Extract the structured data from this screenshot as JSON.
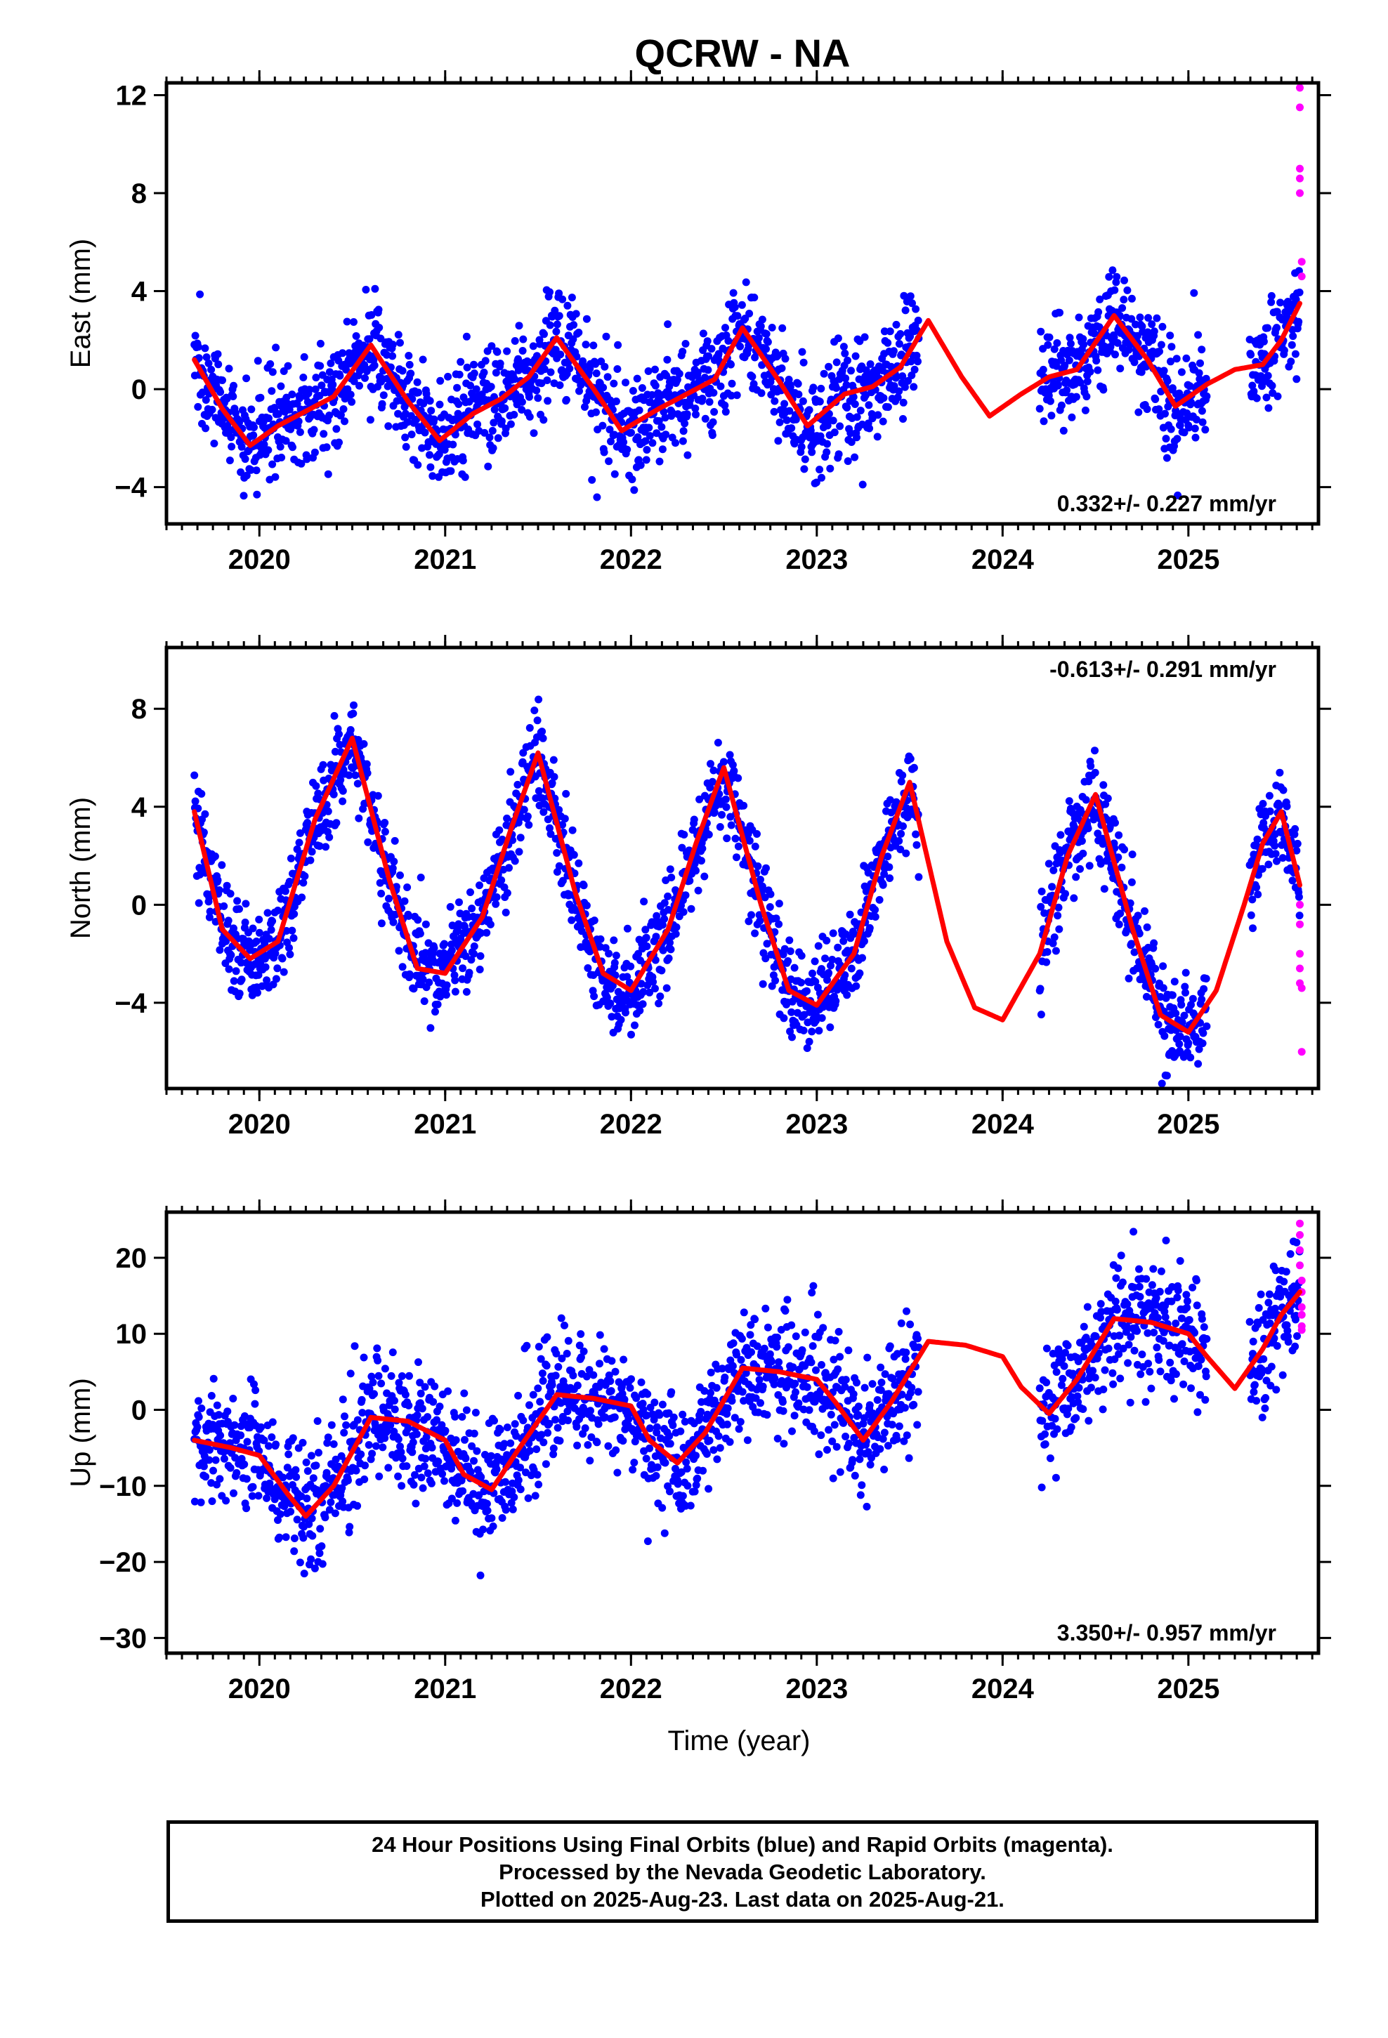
{
  "title": "QCRW - NA",
  "colors": {
    "final_orbits": "#0000ff",
    "rapid_orbits": "#ff00ff",
    "model": "#ff0000"
  },
  "footer": {
    "line1": "24 Hour Positions Using Final Orbits (blue) and Rapid Orbits (magenta).",
    "line2": "Processed by the Nevada Geodetic Laboratory.",
    "line3": "Plotted on 2025-Aug-23. Last data on 2025-Aug-21."
  },
  "chart_data": [
    {
      "type": "scatter",
      "ylabel": "East (mm)",
      "rate_label": "0.332+/- 0.227 mm/yr",
      "rate_position": "bottom-right",
      "xlim": [
        2019.5,
        2025.7
      ],
      "ylim": [
        -5.5,
        12.5
      ],
      "x_ticks": [
        2020,
        2021,
        2022,
        2023,
        2024,
        2025
      ],
      "y_ticks": [
        -4,
        0,
        4,
        8,
        12
      ],
      "rate_mm_per_yr": 0.332,
      "annual_amplitude_mm": 1.8,
      "annual_peak_fraction": 0.62,
      "semiannual_amplitude_mm": 0.3,
      "semiannual_peak_fraction": 0.1,
      "scatter_sd_mm": 1.1,
      "model_line": [
        [
          2019.65,
          1.2
        ],
        [
          2019.8,
          -0.8
        ],
        [
          2019.95,
          -2.3
        ],
        [
          2020.1,
          -1.5
        ],
        [
          2020.25,
          -0.9
        ],
        [
          2020.4,
          -0.3
        ],
        [
          2020.6,
          1.8
        ],
        [
          2020.8,
          -0.5
        ],
        [
          2020.97,
          -2.1
        ],
        [
          2021.15,
          -1.0
        ],
        [
          2021.3,
          -0.4
        ],
        [
          2021.45,
          0.5
        ],
        [
          2021.6,
          2.1
        ],
        [
          2021.8,
          0.0
        ],
        [
          2021.95,
          -1.7
        ],
        [
          2022.15,
          -0.8
        ],
        [
          2022.3,
          -0.2
        ],
        [
          2022.45,
          0.4
        ],
        [
          2022.6,
          2.5
        ],
        [
          2022.8,
          0.3
        ],
        [
          2022.95,
          -1.5
        ],
        [
          2023.15,
          -0.2
        ],
        [
          2023.3,
          0.1
        ],
        [
          2023.45,
          0.9
        ],
        [
          2023.6,
          2.8
        ],
        [
          2023.78,
          0.5
        ],
        [
          2023.93,
          -1.1
        ],
        [
          2024.1,
          -0.2
        ],
        [
          2024.25,
          0.5
        ],
        [
          2024.4,
          0.8
        ],
        [
          2024.6,
          3.0
        ],
        [
          2024.78,
          1.2
        ],
        [
          2024.93,
          -0.7
        ],
        [
          2025.1,
          0.2
        ],
        [
          2025.25,
          0.8
        ],
        [
          2025.4,
          1.0
        ],
        [
          2025.5,
          2.0
        ],
        [
          2025.6,
          3.5
        ]
      ],
      "final_segments": [
        [
          2019.65,
          2023.55
        ],
        [
          2024.2,
          2025.1
        ],
        [
          2025.33,
          2025.6
        ]
      ],
      "rapid_points": [
        [
          2025.6,
          12.3
        ],
        [
          2025.6,
          11.5
        ],
        [
          2025.6,
          9.0
        ],
        [
          2025.6,
          8.6
        ],
        [
          2025.6,
          8.0
        ],
        [
          2025.61,
          5.2
        ],
        [
          2025.61,
          4.6
        ]
      ]
    },
    {
      "type": "scatter",
      "ylabel": "North (mm)",
      "rate_label": "-0.613+/- 0.291 mm/yr",
      "rate_position": "top-right",
      "xlim": [
        2019.5,
        2025.7
      ],
      "ylim": [
        -7.5,
        10.5
      ],
      "x_ticks": [
        2020,
        2021,
        2022,
        2023,
        2024,
        2025
      ],
      "y_ticks": [
        -4,
        0,
        4,
        8
      ],
      "rate_mm_per_yr": -0.613,
      "annual_amplitude_mm": 4.8,
      "annual_peak_fraction": 0.5,
      "semiannual_amplitude_mm": 0.3,
      "semiannual_peak_fraction": 0.0,
      "scatter_sd_mm": 1.0,
      "model_line": [
        [
          2019.65,
          3.8
        ],
        [
          2019.8,
          -1.0
        ],
        [
          2019.95,
          -2.2
        ],
        [
          2020.1,
          -1.5
        ],
        [
          2020.3,
          3.5
        ],
        [
          2020.5,
          6.8
        ],
        [
          2020.7,
          1.0
        ],
        [
          2020.85,
          -2.6
        ],
        [
          2021.0,
          -2.8
        ],
        [
          2021.2,
          -0.5
        ],
        [
          2021.35,
          3.0
        ],
        [
          2021.5,
          6.2
        ],
        [
          2021.7,
          0.5
        ],
        [
          2021.85,
          -2.8
        ],
        [
          2022.0,
          -3.5
        ],
        [
          2022.2,
          -1.0
        ],
        [
          2022.35,
          2.5
        ],
        [
          2022.5,
          5.6
        ],
        [
          2022.7,
          0.0
        ],
        [
          2022.85,
          -3.5
        ],
        [
          2023.0,
          -4.1
        ],
        [
          2023.2,
          -2.0
        ],
        [
          2023.35,
          2.0
        ],
        [
          2023.5,
          5.0
        ],
        [
          2023.7,
          -1.5
        ],
        [
          2023.85,
          -4.2
        ],
        [
          2024.0,
          -4.7
        ],
        [
          2024.2,
          -2.0
        ],
        [
          2024.35,
          2.0
        ],
        [
          2024.5,
          4.5
        ],
        [
          2024.7,
          -1.0
        ],
        [
          2024.85,
          -4.5
        ],
        [
          2025.0,
          -5.2
        ],
        [
          2025.15,
          -3.5
        ],
        [
          2025.3,
          0.0
        ],
        [
          2025.4,
          2.5
        ],
        [
          2025.5,
          3.8
        ],
        [
          2025.6,
          0.8
        ]
      ],
      "final_segments": [
        [
          2019.65,
          2023.55
        ],
        [
          2024.2,
          2025.1
        ],
        [
          2025.33,
          2025.6
        ]
      ],
      "rapid_points": [
        [
          2025.6,
          0.0
        ],
        [
          2025.6,
          -0.8
        ],
        [
          2025.6,
          -2.0
        ],
        [
          2025.6,
          -2.6
        ],
        [
          2025.6,
          -3.2
        ],
        [
          2025.61,
          -3.4
        ],
        [
          2025.61,
          -6.0
        ]
      ]
    },
    {
      "type": "scatter",
      "ylabel": "Up (mm)",
      "xlabel": "Time (year)",
      "rate_label": "3.350+/- 0.957 mm/yr",
      "rate_position": "bottom-right",
      "xlim": [
        2019.5,
        2025.7
      ],
      "ylim": [
        -32,
        26
      ],
      "x_ticks": [
        2020,
        2021,
        2022,
        2023,
        2024,
        2025
      ],
      "y_ticks": [
        -30,
        -20,
        -10,
        0,
        10,
        20
      ],
      "rate_mm_per_yr": 3.35,
      "annual_amplitude_mm": 4.5,
      "annual_peak_fraction": 0.75,
      "semiannual_amplitude_mm": 1.0,
      "semiannual_peak_fraction": 0.2,
      "scatter_sd_mm": 4.0,
      "model_line": [
        [
          2019.65,
          -4.0
        ],
        [
          2019.85,
          -5.0
        ],
        [
          2020.0,
          -6.0
        ],
        [
          2020.15,
          -11.0
        ],
        [
          2020.25,
          -14.0
        ],
        [
          2020.4,
          -10.0
        ],
        [
          2020.6,
          -1.0
        ],
        [
          2020.8,
          -1.5
        ],
        [
          2021.0,
          -4.0
        ],
        [
          2021.1,
          -8.5
        ],
        [
          2021.25,
          -10.5
        ],
        [
          2021.4,
          -5.0
        ],
        [
          2021.6,
          2.0
        ],
        [
          2021.8,
          1.5
        ],
        [
          2022.0,
          0.5
        ],
        [
          2022.1,
          -4.0
        ],
        [
          2022.25,
          -7.0
        ],
        [
          2022.4,
          -3.0
        ],
        [
          2022.6,
          5.5
        ],
        [
          2022.8,
          5.0
        ],
        [
          2023.0,
          4.0
        ],
        [
          2023.1,
          1.0
        ],
        [
          2023.25,
          -4.0
        ],
        [
          2023.4,
          1.0
        ],
        [
          2023.6,
          9.0
        ],
        [
          2023.8,
          8.5
        ],
        [
          2024.0,
          7.0
        ],
        [
          2024.1,
          3.0
        ],
        [
          2024.25,
          -0.5
        ],
        [
          2024.4,
          4.0
        ],
        [
          2024.6,
          12.0
        ],
        [
          2024.8,
          11.5
        ],
        [
          2025.0,
          10.0
        ],
        [
          2025.1,
          7.0
        ],
        [
          2025.25,
          2.8
        ],
        [
          2025.4,
          8.0
        ],
        [
          2025.5,
          12.5
        ],
        [
          2025.6,
          15.5
        ]
      ],
      "final_segments": [
        [
          2019.65,
          2023.55
        ],
        [
          2024.2,
          2025.1
        ],
        [
          2025.33,
          2025.6
        ]
      ],
      "rapid_points": [
        [
          2025.6,
          24.5
        ],
        [
          2025.6,
          23.0
        ],
        [
          2025.6,
          21.0
        ],
        [
          2025.6,
          19.0
        ],
        [
          2025.61,
          17.0
        ],
        [
          2025.61,
          15.5
        ],
        [
          2025.61,
          13.5
        ],
        [
          2025.61,
          12.5
        ],
        [
          2025.61,
          11.0
        ],
        [
          2025.61,
          10.5
        ]
      ]
    }
  ]
}
